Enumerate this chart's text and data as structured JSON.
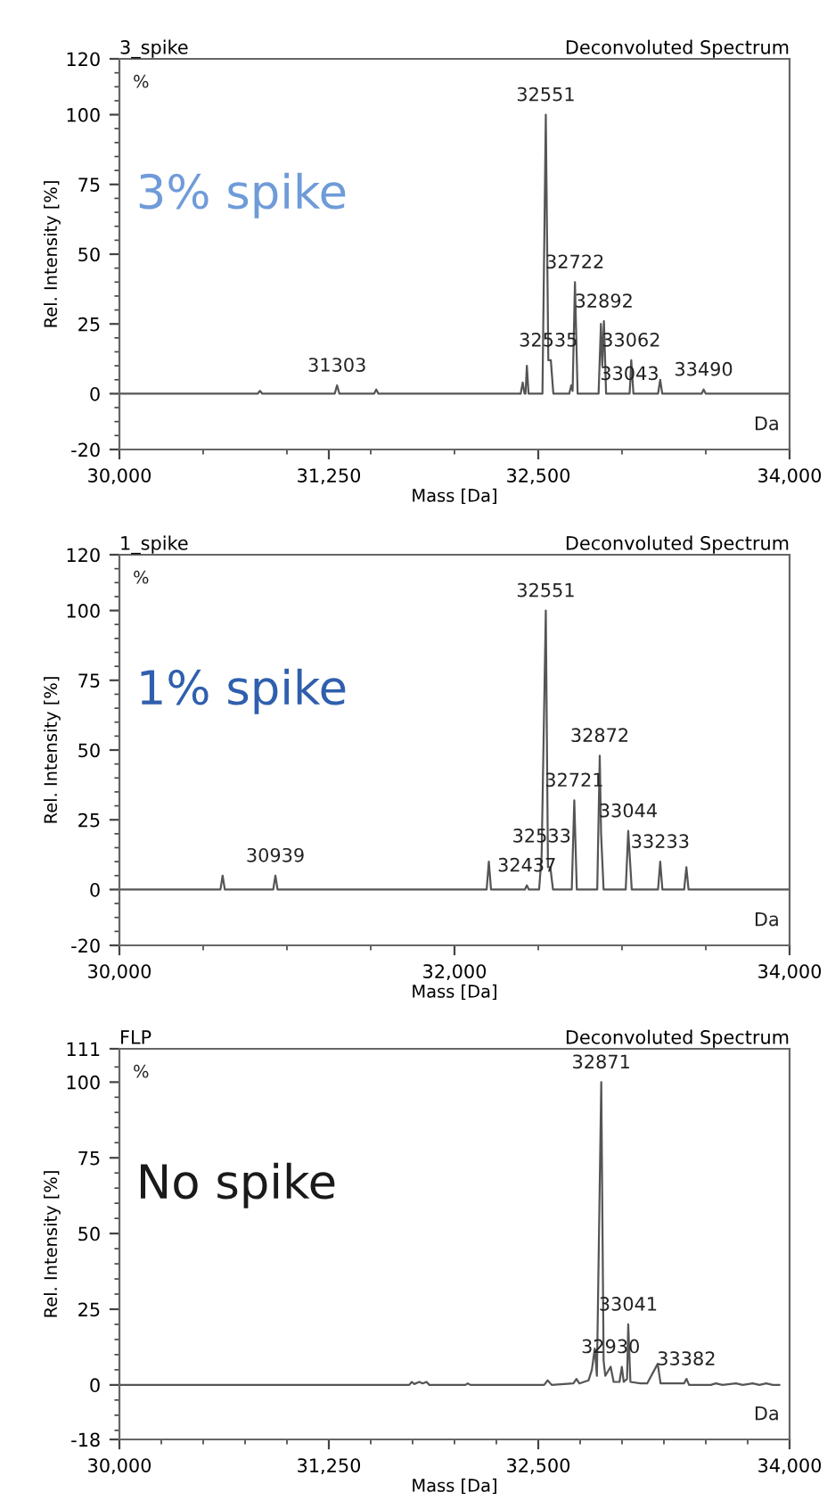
{
  "chart_data": [
    {
      "type": "line",
      "title": "3_spike",
      "subtitle": "Deconvoluted Spectrum",
      "xlabel": "Mass [Da]",
      "ylabel": "Rel. Intensity [%]",
      "xlim": [
        30000,
        34000
      ],
      "ylim": [
        -20,
        120
      ],
      "xticks": [
        {
          "value": 30000,
          "label": "30,000"
        },
        {
          "value": 30500,
          "label": null
        },
        {
          "value": 31000,
          "label": null
        },
        {
          "value": 31250,
          "label": "31,250"
        },
        {
          "value": 31500,
          "label": null
        },
        {
          "value": 32000,
          "label": null
        },
        {
          "value": 32500,
          "label": "32,500"
        },
        {
          "value": 33000,
          "label": null
        },
        {
          "value": 33500,
          "label": null
        },
        {
          "value": 34000,
          "label": "34,000"
        }
      ],
      "yticks": [
        -20,
        {
          "value": -15,
          "label": null
        },
        {
          "value": -10,
          "label": null
        },
        {
          "value": -5,
          "label": null
        },
        0,
        {
          "value": 5,
          "label": null
        },
        {
          "value": 10,
          "label": null
        },
        {
          "value": 15,
          "label": null
        },
        {
          "value": 20,
          "label": null
        },
        25,
        {
          "value": 30,
          "label": null
        },
        {
          "value": 35,
          "label": null
        },
        {
          "value": 40,
          "label": null
        },
        {
          "value": 45,
          "label": null
        },
        50,
        {
          "value": 55,
          "label": null
        },
        {
          "value": 60,
          "label": null
        },
        {
          "value": 65,
          "label": null
        },
        {
          "value": 70,
          "label": null
        },
        75,
        {
          "value": 80,
          "label": null
        },
        {
          "value": 85,
          "label": null
        },
        {
          "value": 90,
          "label": null
        },
        {
          "value": 95,
          "label": null
        },
        100,
        {
          "value": 105,
          "label": null
        },
        {
          "value": 110,
          "label": null
        },
        {
          "value": 115,
          "label": null
        },
        120
      ],
      "series": [
        {
          "color": "#555555",
          "x": [
            30000,
            30825,
            30839,
            30853,
            31285,
            31299,
            31313,
            31520,
            31533,
            31546,
            32395,
            32407,
            32418,
            32424,
            32432,
            32442,
            32525,
            32545,
            32560,
            32575,
            32590,
            32685,
            32697,
            32705,
            32719,
            32735,
            32860,
            32874,
            32882,
            32892,
            32905,
            33045,
            33050,
            33055,
            33068,
            33215,
            33228,
            33240,
            33475,
            33487,
            33500,
            34000
          ],
          "values": [
            0,
            0,
            1,
            0,
            0,
            3,
            0,
            0,
            1.5,
            0,
            0,
            4,
            0,
            0,
            10,
            0,
            0,
            100,
            12,
            12,
            0,
            0,
            3,
            1,
            40,
            0,
            0,
            25,
            10,
            26,
            0,
            0,
            5,
            12,
            0,
            0,
            5,
            0,
            0,
            1.5,
            0,
            0
          ]
        }
      ],
      "annotations": [
        "%",
        "Da",
        "3% spike",
        {
          "text": "32551",
          "x": 32545,
          "y": 100
        },
        {
          "text": "32722",
          "x": 32719,
          "y": 40
        },
        {
          "text": "32892",
          "x": 32892,
          "y": 26
        },
        {
          "text": "32535",
          "x": 32560,
          "y": 12
        },
        {
          "text": "33062",
          "x": 33055,
          "y": 12
        },
        {
          "text": "33043",
          "x": 33045,
          "y": 0
        },
        {
          "text": "33490",
          "x": 33487,
          "y": 1.5
        },
        {
          "text": "31303",
          "x": 31299,
          "y": 3
        }
      ]
    },
    {
      "type": "line",
      "title": "1_spike",
      "subtitle": "Deconvoluted Spectrum",
      "xlabel": "Mass [Da]",
      "ylabel": "Rel. Intensity [%]",
      "xlim": [
        30000,
        34000
      ],
      "ylim": [
        -20,
        120
      ],
      "xticks": [
        {
          "value": 30000,
          "label": "30,000"
        },
        {
          "value": 30500,
          "label": null
        },
        {
          "value": 31000,
          "label": null
        },
        {
          "value": 31500,
          "label": null
        },
        {
          "value": 32000,
          "label": "32,000"
        },
        {
          "value": 32500,
          "label": null
        },
        {
          "value": 33000,
          "label": null
        },
        {
          "value": 33500,
          "label": null
        },
        {
          "value": 34000,
          "label": "34,000"
        }
      ],
      "yticks": [
        -20,
        {
          "value": -15,
          "label": null
        },
        {
          "value": -10,
          "label": null
        },
        {
          "value": -5,
          "label": null
        },
        0,
        {
          "value": 5,
          "label": null
        },
        {
          "value": 10,
          "label": null
        },
        {
          "value": 15,
          "label": null
        },
        {
          "value": 20,
          "label": null
        },
        25,
        {
          "value": 30,
          "label": null
        },
        {
          "value": 35,
          "label": null
        },
        {
          "value": 40,
          "label": null
        },
        {
          "value": 45,
          "label": null
        },
        50,
        {
          "value": 55,
          "label": null
        },
        {
          "value": 60,
          "label": null
        },
        {
          "value": 65,
          "label": null
        },
        {
          "value": 70,
          "label": null
        },
        75,
        {
          "value": 80,
          "label": null
        },
        {
          "value": 85,
          "label": null
        },
        {
          "value": 90,
          "label": null
        },
        {
          "value": 95,
          "label": null
        },
        100,
        {
          "value": 105,
          "label": null
        },
        {
          "value": 110,
          "label": null
        },
        {
          "value": 115,
          "label": null
        },
        120
      ],
      "series": [
        {
          "color": "#555555",
          "x": [
            30000,
            30603,
            30616,
            30629,
            30918,
            30931,
            30944,
            32192,
            32205,
            32218,
            32420,
            32432,
            32444,
            32505,
            32520,
            32545,
            32558,
            32572,
            32588,
            32700,
            32715,
            32730,
            32852,
            32867,
            32875,
            32890,
            33022,
            33037,
            33045,
            33058,
            33215,
            33228,
            33241,
            33371,
            33384,
            33397,
            34000
          ],
          "values": [
            0,
            0,
            5,
            0,
            0,
            5,
            0,
            0,
            10,
            0,
            0,
            1.5,
            0,
            0,
            12,
            100,
            8,
            8,
            0,
            0,
            32,
            0,
            0,
            48,
            20,
            0,
            0,
            21,
            13,
            0,
            0,
            10,
            0,
            0,
            8,
            0,
            0
          ]
        }
      ],
      "annotations": [
        "%",
        "Da",
        "1% spike",
        {
          "text": "32551",
          "x": 32545,
          "y": 100
        },
        {
          "text": "32872",
          "x": 32867,
          "y": 48
        },
        {
          "text": "32721",
          "x": 32715,
          "y": 32
        },
        {
          "text": "33044",
          "x": 33037,
          "y": 21
        },
        {
          "text": "32533",
          "x": 32520,
          "y": 12
        },
        {
          "text": "33233",
          "x": 33228,
          "y": 10
        },
        {
          "text": "32437",
          "x": 32432,
          "y": 1.5
        },
        {
          "text": "30939",
          "x": 30931,
          "y": 5
        }
      ]
    },
    {
      "type": "line",
      "title": "FLP",
      "subtitle": "Deconvoluted Spectrum",
      "xlabel": "Mass [Da]",
      "ylabel": "Rel. Intensity [%]",
      "xlim": [
        30000,
        34000
      ],
      "ylim": [
        -18,
        111
      ],
      "xticks": [
        {
          "value": 30000,
          "label": "30,000"
        },
        {
          "value": 30250,
          "label": null
        },
        {
          "value": 30500,
          "label": null
        },
        {
          "value": 30750,
          "label": null
        },
        {
          "value": 31000,
          "label": null
        },
        {
          "value": 31250,
          "label": "31,250"
        },
        {
          "value": 31500,
          "label": null
        },
        {
          "value": 31750,
          "label": null
        },
        {
          "value": 32000,
          "label": null
        },
        {
          "value": 32250,
          "label": null
        },
        {
          "value": 32500,
          "label": "32,500"
        },
        {
          "value": 32750,
          "label": null
        },
        {
          "value": 33000,
          "label": null
        },
        {
          "value": 33250,
          "label": null
        },
        {
          "value": 33500,
          "label": null
        },
        {
          "value": 33750,
          "label": null
        },
        {
          "value": 34000,
          "label": "34,000"
        }
      ],
      "yticks": [
        -18,
        {
          "value": -15,
          "label": null
        },
        {
          "value": -10,
          "label": null
        },
        {
          "value": -5,
          "label": null
        },
        0,
        {
          "value": 5,
          "label": null
        },
        {
          "value": 10,
          "label": null
        },
        {
          "value": 15,
          "label": null
        },
        {
          "value": 20,
          "label": null
        },
        25,
        {
          "value": 30,
          "label": null
        },
        {
          "value": 35,
          "label": null
        },
        {
          "value": 40,
          "label": null
        },
        {
          "value": 45,
          "label": null
        },
        50,
        {
          "value": 55,
          "label": null
        },
        {
          "value": 60,
          "label": null
        },
        {
          "value": 65,
          "label": null
        },
        {
          "value": 70,
          "label": null
        },
        75,
        {
          "value": 80,
          "label": null
        },
        {
          "value": 85,
          "label": null
        },
        {
          "value": 90,
          "label": null
        },
        {
          "value": 95,
          "label": null
        },
        100,
        {
          "value": 105,
          "label": null
        },
        111
      ],
      "series": [
        {
          "color": "#555555",
          "x": [
            30000,
            31730,
            31745,
            31760,
            31790,
            31810,
            31833,
            31850,
            32065,
            32079,
            32095,
            32535,
            32556,
            32580,
            32710,
            32728,
            32745,
            32800,
            32820,
            32837,
            32850,
            32876,
            32890,
            32900,
            32932,
            32950,
            32985,
            32999,
            33010,
            33030,
            33037,
            33050,
            33110,
            33150,
            33213,
            33230,
            33370,
            33385,
            33400,
            33530,
            33560,
            33600,
            33680,
            33720,
            33780,
            33820,
            33860,
            33900,
            33940
          ],
          "values": [
            0,
            0,
            1,
            0.3,
            1,
            0.5,
            1,
            0,
            0,
            0.5,
            0,
            0,
            1.5,
            0,
            0.5,
            2,
            0.5,
            1.5,
            5,
            12,
            3,
            100,
            8,
            3,
            6,
            1,
            1,
            6,
            1,
            2,
            20,
            1,
            0.5,
            0.5,
            7,
            0.5,
            0.5,
            2,
            0,
            0,
            0.5,
            0,
            0.5,
            0,
            0.5,
            0,
            0.5,
            0,
            0
          ]
        }
      ],
      "annotations": [
        "%",
        "Da",
        "No spike",
        {
          "text": "32871",
          "x": 32876,
          "y": 100
        },
        {
          "text": "33041",
          "x": 33037,
          "y": 20
        },
        {
          "text": "32930",
          "x": 32932,
          "y": 6
        },
        {
          "text": "33382",
          "x": 33385,
          "y": 2
        }
      ]
    }
  ]
}
